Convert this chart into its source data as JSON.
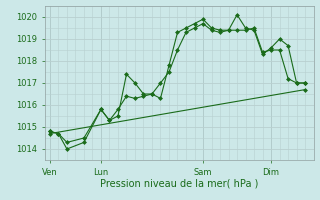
{
  "title": "",
  "xlabel": "Pression niveau de la mer( hPa )",
  "ylim": [
    1013.5,
    1020.5
  ],
  "yticks": [
    1014,
    1015,
    1016,
    1017,
    1018,
    1019,
    1020
  ],
  "bg_color": "#cce8e8",
  "grid_color": "#b8d0d0",
  "line_color": "#1a6b1a",
  "xtick_labels": [
    "Ven",
    "Lun",
    "Sam",
    "Dim"
  ],
  "xtick_positions": [
    0,
    3,
    9,
    13
  ],
  "line1_x": [
    0,
    0.5,
    1,
    2,
    3,
    3.5,
    4,
    4.5,
    5,
    5.5,
    6,
    6.5,
    7,
    7.5,
    8,
    8.5,
    9,
    9.5,
    10,
    10.5,
    11,
    11.5,
    12,
    12.5,
    13,
    13.5,
    14,
    14.5,
    15
  ],
  "line1_y": [
    1014.8,
    1014.7,
    1014.0,
    1014.3,
    1015.8,
    1015.3,
    1015.5,
    1017.4,
    1017.0,
    1016.5,
    1016.5,
    1016.3,
    1017.8,
    1019.3,
    1019.5,
    1019.7,
    1019.9,
    1019.5,
    1019.4,
    1019.4,
    1020.1,
    1019.5,
    1019.4,
    1018.3,
    1018.6,
    1019.0,
    1018.7,
    1017.0,
    1017.0
  ],
  "line2_x": [
    0,
    0.5,
    1,
    2,
    3,
    3.5,
    4,
    4.5,
    5,
    5.5,
    6,
    6.5,
    7,
    7.5,
    8,
    8.5,
    9,
    9.5,
    10,
    10.5,
    11,
    11.5,
    12,
    12.5,
    13,
    13.5,
    14,
    14.5,
    15
  ],
  "line2_y": [
    1014.8,
    1014.7,
    1014.3,
    1014.5,
    1015.8,
    1015.3,
    1015.8,
    1016.4,
    1016.3,
    1016.4,
    1016.5,
    1017.0,
    1017.5,
    1018.5,
    1019.3,
    1019.5,
    1019.7,
    1019.4,
    1019.3,
    1019.4,
    1019.4,
    1019.4,
    1019.5,
    1018.4,
    1018.5,
    1018.5,
    1017.2,
    1017.0,
    1017.0
  ],
  "line3_x": [
    0,
    15
  ],
  "line3_y": [
    1014.7,
    1016.7
  ],
  "xlim": [
    -0.3,
    15.5
  ]
}
